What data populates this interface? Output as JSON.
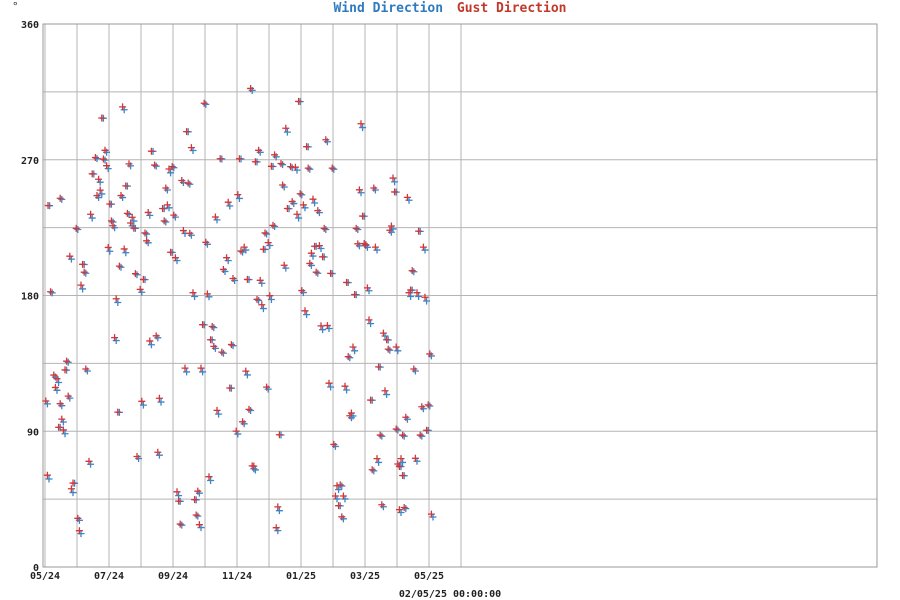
{
  "chart_data": {
    "type": "scatter",
    "title_parts": [
      {
        "text": "Wind Direction",
        "color": "#2e7bbf"
      },
      {
        "text": "Gust Direction",
        "color": "#c0392b"
      }
    ],
    "y_unit_mark": "°",
    "x_footer": "02/05/25 00:00:00",
    "ylim": [
      0,
      360
    ],
    "y_ticks": [
      0,
      90,
      180,
      270,
      360
    ],
    "y_grid_step": 45,
    "x_ticks": [
      {
        "label": "05/24",
        "pos": 0
      },
      {
        "label": "07/24",
        "pos": 2
      },
      {
        "label": "09/24",
        "pos": 4
      },
      {
        "label": "11/24",
        "pos": 6
      },
      {
        "label": "01/25",
        "pos": 8
      },
      {
        "label": "03/25",
        "pos": 10
      },
      {
        "label": "05/25",
        "pos": 12
      }
    ],
    "x_months": 13,
    "marker": "plus",
    "legend": "top-center",
    "grid": true,
    "series": [
      {
        "name": "Wind Direction",
        "color": "#3a86c8",
        "offset": 0.8
      },
      {
        "name": "Gust Direction",
        "color": "#d0373a",
        "offset": -0.8
      }
    ],
    "points": [
      [
        0.05,
        110
      ],
      [
        0.1,
        59
      ],
      [
        0.12,
        239
      ],
      [
        0.2,
        183
      ],
      [
        0.3,
        126
      ],
      [
        0.35,
        119
      ],
      [
        0.4,
        123
      ],
      [
        0.45,
        92
      ],
      [
        0.5,
        245
      ],
      [
        0.5,
        107
      ],
      [
        0.55,
        98
      ],
      [
        0.6,
        89
      ],
      [
        0.65,
        130
      ],
      [
        0.7,
        137
      ],
      [
        0.75,
        112
      ],
      [
        0.8,
        206
      ],
      [
        0.85,
        50
      ],
      [
        0.9,
        55
      ],
      [
        1.0,
        225
      ],
      [
        1.05,
        31
      ],
      [
        1.1,
        24
      ],
      [
        1.15,
        185
      ],
      [
        1.2,
        200
      ],
      [
        1.25,
        196
      ],
      [
        1.3,
        130
      ],
      [
        1.4,
        70
      ],
      [
        1.45,
        232
      ],
      [
        1.5,
        260
      ],
      [
        1.6,
        272
      ],
      [
        1.65,
        245
      ],
      [
        1.7,
        257
      ],
      [
        1.75,
        248
      ],
      [
        1.8,
        297
      ],
      [
        1.85,
        271
      ],
      [
        1.9,
        275
      ],
      [
        1.95,
        266
      ],
      [
        2.0,
        210
      ],
      [
        2.05,
        240
      ],
      [
        2.1,
        230
      ],
      [
        2.15,
        225
      ],
      [
        2.2,
        152
      ],
      [
        2.25,
        176
      ],
      [
        2.3,
        102
      ],
      [
        2.35,
        200
      ],
      [
        2.4,
        245
      ],
      [
        2.45,
        305
      ],
      [
        2.5,
        209
      ],
      [
        2.55,
        252
      ],
      [
        2.6,
        235
      ],
      [
        2.65,
        266
      ],
      [
        2.7,
        228
      ],
      [
        2.75,
        230
      ],
      [
        2.8,
        224
      ],
      [
        2.85,
        195
      ],
      [
        2.9,
        72
      ],
      [
        3.0,
        184
      ],
      [
        3.05,
        108
      ],
      [
        3.1,
        190
      ],
      [
        3.15,
        222
      ],
      [
        3.2,
        215
      ],
      [
        3.25,
        235
      ],
      [
        3.3,
        148
      ],
      [
        3.35,
        275
      ],
      [
        3.45,
        267
      ],
      [
        3.5,
        152
      ],
      [
        3.55,
        76
      ],
      [
        3.6,
        110
      ],
      [
        3.7,
        237
      ],
      [
        3.75,
        230
      ],
      [
        3.8,
        250
      ],
      [
        3.85,
        240
      ],
      [
        3.9,
        262
      ],
      [
        3.95,
        208
      ],
      [
        4.0,
        266
      ],
      [
        4.05,
        232
      ],
      [
        4.1,
        205
      ],
      [
        4.15,
        48
      ],
      [
        4.2,
        43
      ],
      [
        4.25,
        29
      ],
      [
        4.3,
        255
      ],
      [
        4.35,
        223
      ],
      [
        4.4,
        130
      ],
      [
        4.45,
        288
      ],
      [
        4.5,
        255
      ],
      [
        4.55,
        220
      ],
      [
        4.6,
        278
      ],
      [
        4.65,
        180
      ],
      [
        4.7,
        44
      ],
      [
        4.75,
        35
      ],
      [
        4.8,
        49
      ],
      [
        4.85,
        28
      ],
      [
        4.9,
        130
      ],
      [
        4.95,
        160
      ],
      [
        5.0,
        308
      ],
      [
        5.05,
        214
      ],
      [
        5.1,
        181
      ],
      [
        5.15,
        58
      ],
      [
        5.2,
        150
      ],
      [
        5.25,
        160
      ],
      [
        5.3,
        145
      ],
      [
        5.35,
        232
      ],
      [
        5.4,
        102
      ],
      [
        5.5,
        270
      ],
      [
        5.55,
        143
      ],
      [
        5.6,
        196
      ],
      [
        5.7,
        205
      ],
      [
        5.75,
        240
      ],
      [
        5.8,
        118
      ],
      [
        5.85,
        148
      ],
      [
        5.9,
        190
      ],
      [
        6.0,
        90
      ],
      [
        6.05,
        245
      ],
      [
        6.1,
        270
      ],
      [
        6.15,
        210
      ],
      [
        6.2,
        95
      ],
      [
        6.25,
        212
      ],
      [
        6.3,
        128
      ],
      [
        6.35,
        190
      ],
      [
        6.4,
        105
      ],
      [
        6.45,
        316
      ],
      [
        6.5,
        67
      ],
      [
        6.55,
        65
      ],
      [
        6.6,
        268
      ],
      [
        6.65,
        178
      ],
      [
        6.7,
        275
      ],
      [
        6.75,
        190
      ],
      [
        6.8,
        172
      ],
      [
        6.85,
        210
      ],
      [
        6.9,
        222
      ],
      [
        6.95,
        118
      ],
      [
        7.0,
        215
      ],
      [
        7.05,
        178
      ],
      [
        7.1,
        265
      ],
      [
        7.15,
        227
      ],
      [
        7.2,
        272
      ],
      [
        7.25,
        26
      ],
      [
        7.3,
        38
      ],
      [
        7.35,
        87
      ],
      [
        7.4,
        268
      ],
      [
        7.45,
        252
      ],
      [
        7.5,
        200
      ],
      [
        7.55,
        289
      ],
      [
        7.6,
        237
      ],
      [
        7.7,
        266
      ],
      [
        7.75,
        241
      ],
      [
        7.85,
        265
      ],
      [
        7.9,
        232
      ],
      [
        7.95,
        308
      ],
      [
        8.0,
        248
      ],
      [
        8.05,
        182
      ],
      [
        8.1,
        240
      ],
      [
        8.15,
        168
      ],
      [
        8.2,
        278
      ],
      [
        8.25,
        265
      ],
      [
        8.3,
        200
      ],
      [
        8.35,
        208
      ],
      [
        8.4,
        242
      ],
      [
        8.45,
        212
      ],
      [
        8.5,
        196
      ],
      [
        8.55,
        235
      ],
      [
        8.6,
        213
      ],
      [
        8.65,
        158
      ],
      [
        8.7,
        205
      ],
      [
        8.75,
        225
      ],
      [
        8.8,
        282
      ],
      [
        8.85,
        160
      ],
      [
        8.9,
        120
      ],
      [
        8.95,
        194
      ],
      [
        9.0,
        265
      ],
      [
        9.05,
        80
      ],
      [
        9.1,
        47
      ],
      [
        9.15,
        52
      ],
      [
        9.2,
        40
      ],
      [
        9.25,
        55
      ],
      [
        9.3,
        32
      ],
      [
        9.35,
        47
      ],
      [
        9.4,
        118
      ],
      [
        9.45,
        188
      ],
      [
        9.5,
        140
      ],
      [
        9.55,
        99
      ],
      [
        9.6,
        102
      ],
      [
        9.65,
        144
      ],
      [
        9.7,
        180
      ],
      [
        9.75,
        225
      ],
      [
        9.8,
        213
      ],
      [
        9.85,
        250
      ],
      [
        9.9,
        292
      ],
      [
        9.95,
        232
      ],
      [
        10.0,
        215
      ],
      [
        10.05,
        212
      ],
      [
        10.1,
        185
      ],
      [
        10.15,
        162
      ],
      [
        10.2,
        110
      ],
      [
        10.25,
        65
      ],
      [
        10.3,
        250
      ],
      [
        10.35,
        212
      ],
      [
        10.4,
        70
      ],
      [
        10.45,
        132
      ],
      [
        10.5,
        88
      ],
      [
        10.55,
        40
      ],
      [
        10.6,
        155
      ],
      [
        10.65,
        115
      ],
      [
        10.7,
        150
      ],
      [
        10.75,
        145
      ],
      [
        10.8,
        222
      ],
      [
        10.85,
        226
      ],
      [
        10.9,
        256
      ],
      [
        10.95,
        248
      ],
      [
        11.0,
        92
      ],
      [
        11.05,
        67
      ],
      [
        11.1,
        38
      ],
      [
        11.15,
        70
      ],
      [
        11.2,
        60
      ],
      [
        11.25,
        40
      ],
      [
        11.3,
        98
      ],
      [
        11.35,
        245
      ],
      [
        11.4,
        180
      ],
      [
        11.45,
        183
      ],
      [
        11.5,
        197
      ],
      [
        11.55,
        130
      ],
      [
        11.6,
        72
      ],
      [
        11.65,
        180
      ],
      [
        11.7,
        222
      ],
      [
        11.75,
        88
      ],
      [
        11.8,
        105
      ],
      [
        11.85,
        212
      ],
      [
        11.9,
        177
      ],
      [
        11.95,
        90
      ],
      [
        12.0,
        108
      ],
      [
        12.05,
        140
      ],
      [
        12.1,
        35
      ],
      [
        11.0,
        144
      ],
      [
        11.1,
        66
      ],
      [
        11.2,
        88
      ]
    ]
  }
}
